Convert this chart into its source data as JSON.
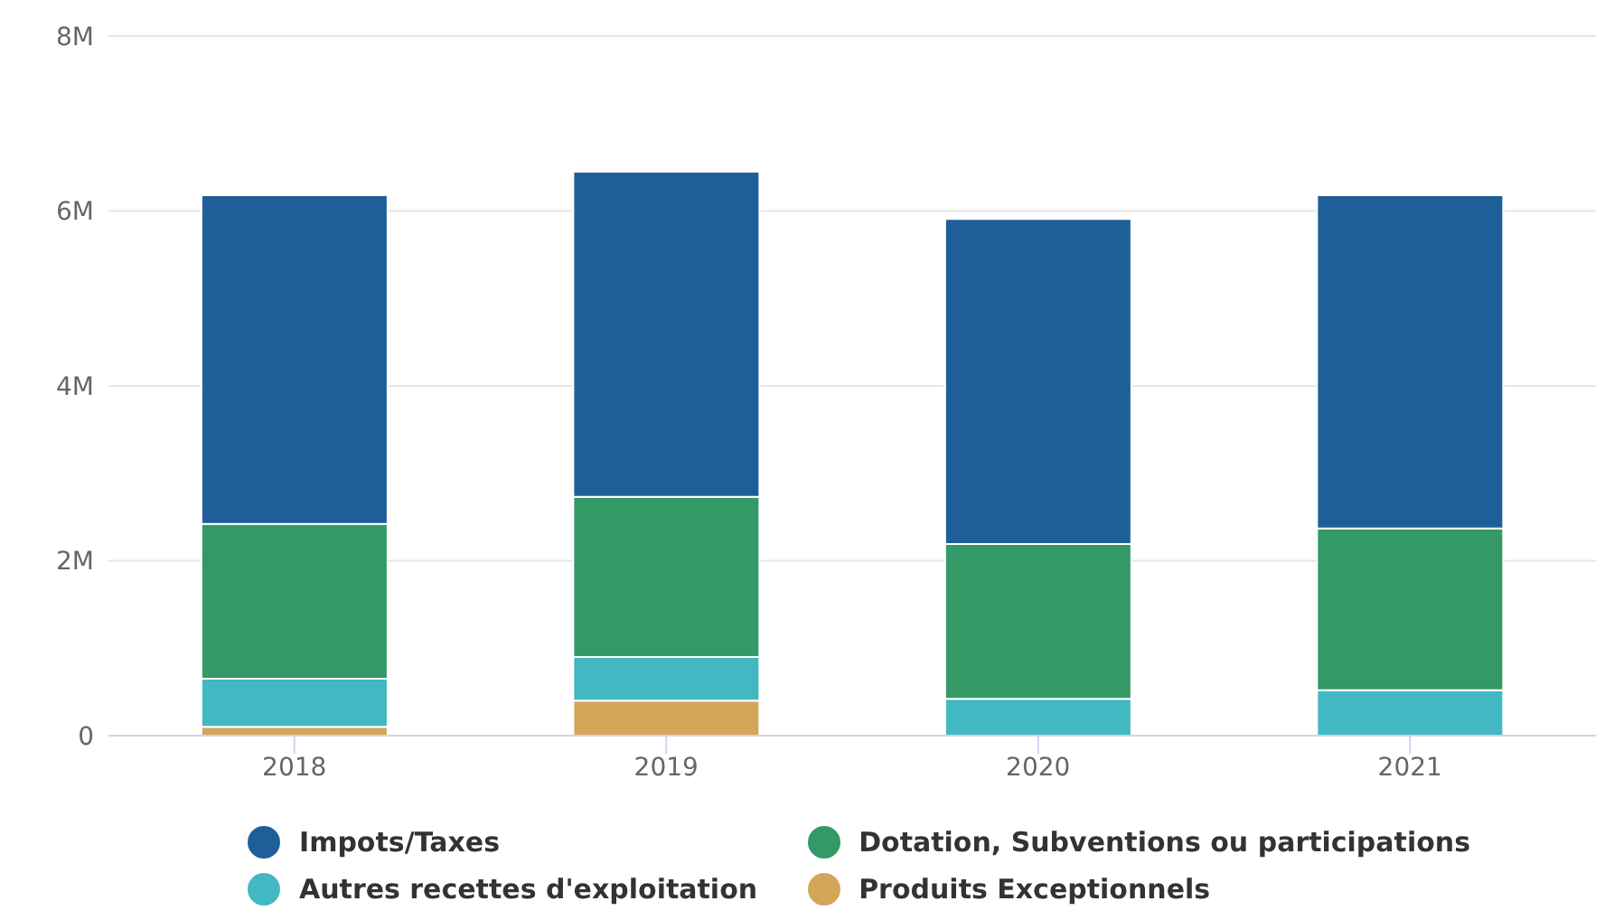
{
  "chart_data": {
    "type": "bar",
    "stacked": true,
    "categories": [
      "2018",
      "2019",
      "2020",
      "2021"
    ],
    "series": [
      {
        "name": "Produits Exceptionnels",
        "color": "#d4a65a",
        "values": [
          0.1,
          0.4,
          null,
          0
        ]
      },
      {
        "name": "Autres recettes d'exploitation",
        "color": "#41b8c2",
        "values": [
          0.55,
          0.5,
          0.42,
          0.52
        ]
      },
      {
        "name": "Dotation, Subventions ou participations",
        "color": "#339966",
        "values": [
          1.77,
          1.83,
          1.77,
          1.85
        ]
      },
      {
        "name": "Impots/Taxes",
        "color": "#1f5f99",
        "values": [
          3.76,
          3.72,
          3.72,
          3.81
        ]
      }
    ],
    "ylim": [
      0,
      8
    ],
    "yticks": [
      {
        "value": 0,
        "label": "0"
      },
      {
        "value": 2,
        "label": "2M"
      },
      {
        "value": 4,
        "label": "4M"
      },
      {
        "value": 6,
        "label": "6M"
      },
      {
        "value": 8,
        "label": "8M"
      }
    ],
    "grid": "y",
    "legend": "bottom"
  }
}
